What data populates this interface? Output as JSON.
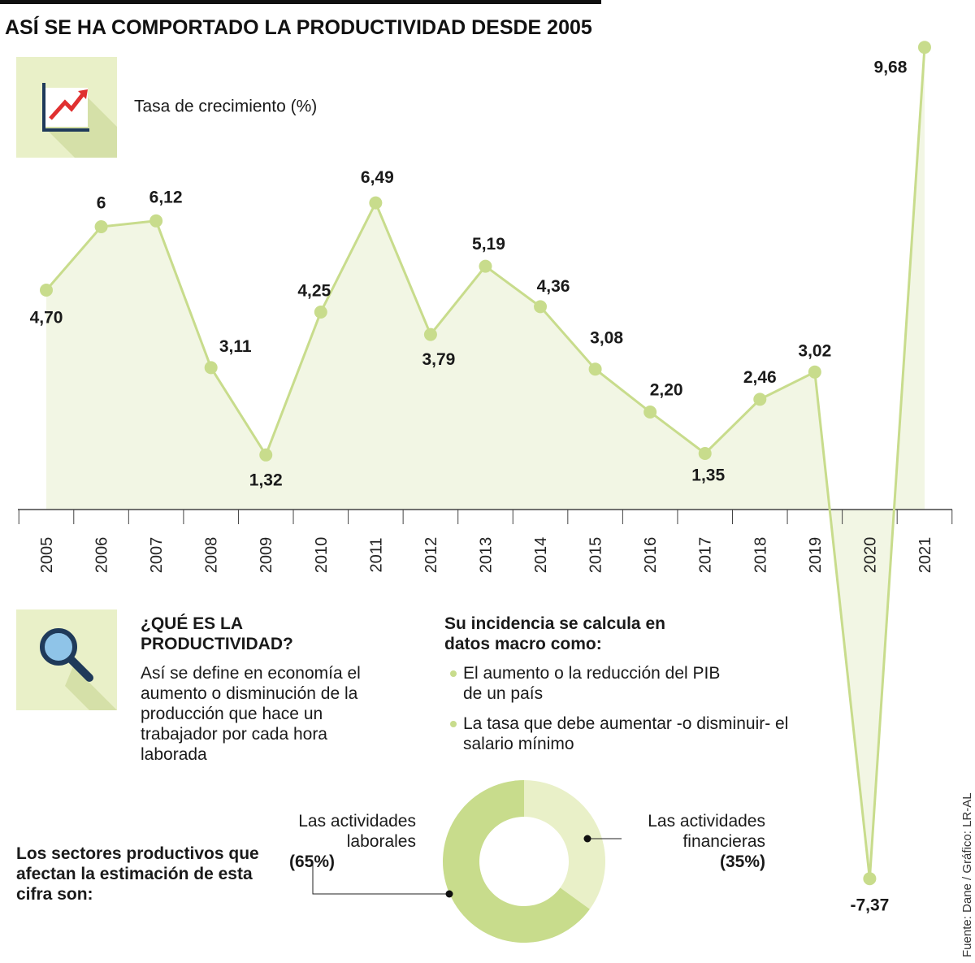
{
  "chart_data": [
    {
      "type": "line",
      "title": "ASÍ SE HA COMPORTADO LA PRODUCTIVIDAD DESDE 2005",
      "subtitle": "Tasa de crecimiento (%)",
      "categories": [
        "2005",
        "2006",
        "2007",
        "2008",
        "2009",
        "2010",
        "2011",
        "2012",
        "2013",
        "2014",
        "2015",
        "2016",
        "2017",
        "2018",
        "2019",
        "2020",
        "2021"
      ],
      "values": [
        4.7,
        6,
        6.12,
        3.11,
        1.32,
        4.25,
        6.49,
        3.79,
        5.19,
        4.36,
        3.08,
        2.2,
        1.35,
        2.46,
        3.02,
        -7.37,
        9.68
      ],
      "value_labels": [
        "4,70",
        "6",
        "6,12",
        "3,11",
        "1,32",
        "4,25",
        "6,49",
        "3,79",
        "5,19",
        "4,36",
        "3,08",
        "2,20",
        "1,35",
        "2,46",
        "3,02",
        "-7,37",
        "9,68"
      ],
      "color": "#c8dc8c",
      "ylim": [
        -8,
        10
      ]
    },
    {
      "type": "pie",
      "categories": [
        "Las actividades laborales",
        "Las actividades financieras"
      ],
      "values": [
        65,
        35
      ],
      "value_labels": [
        "(65%)",
        "(35%)"
      ],
      "colors": [
        "#c8dc8c",
        "#e9f0c8"
      ]
    }
  ],
  "info": {
    "heading": "¿QUÉ ES LA PRODUCTIVIDAD?",
    "text": "Así se define en economía el aumento o disminución de la producción que hace un trabajador por cada hora laborada"
  },
  "incidence": {
    "heading": "Su incidencia se calcula en datos macro como:",
    "items": [
      "El aumento o la reducción del PIB de un país",
      "La tasa que debe aumentar -o disminuir- el salario mínimo"
    ]
  },
  "sectors_heading": "Los sectores productivos que afectan la estimación de esta cifra son:",
  "source": "Fuente: Dane / Gráfico: LR-AL"
}
